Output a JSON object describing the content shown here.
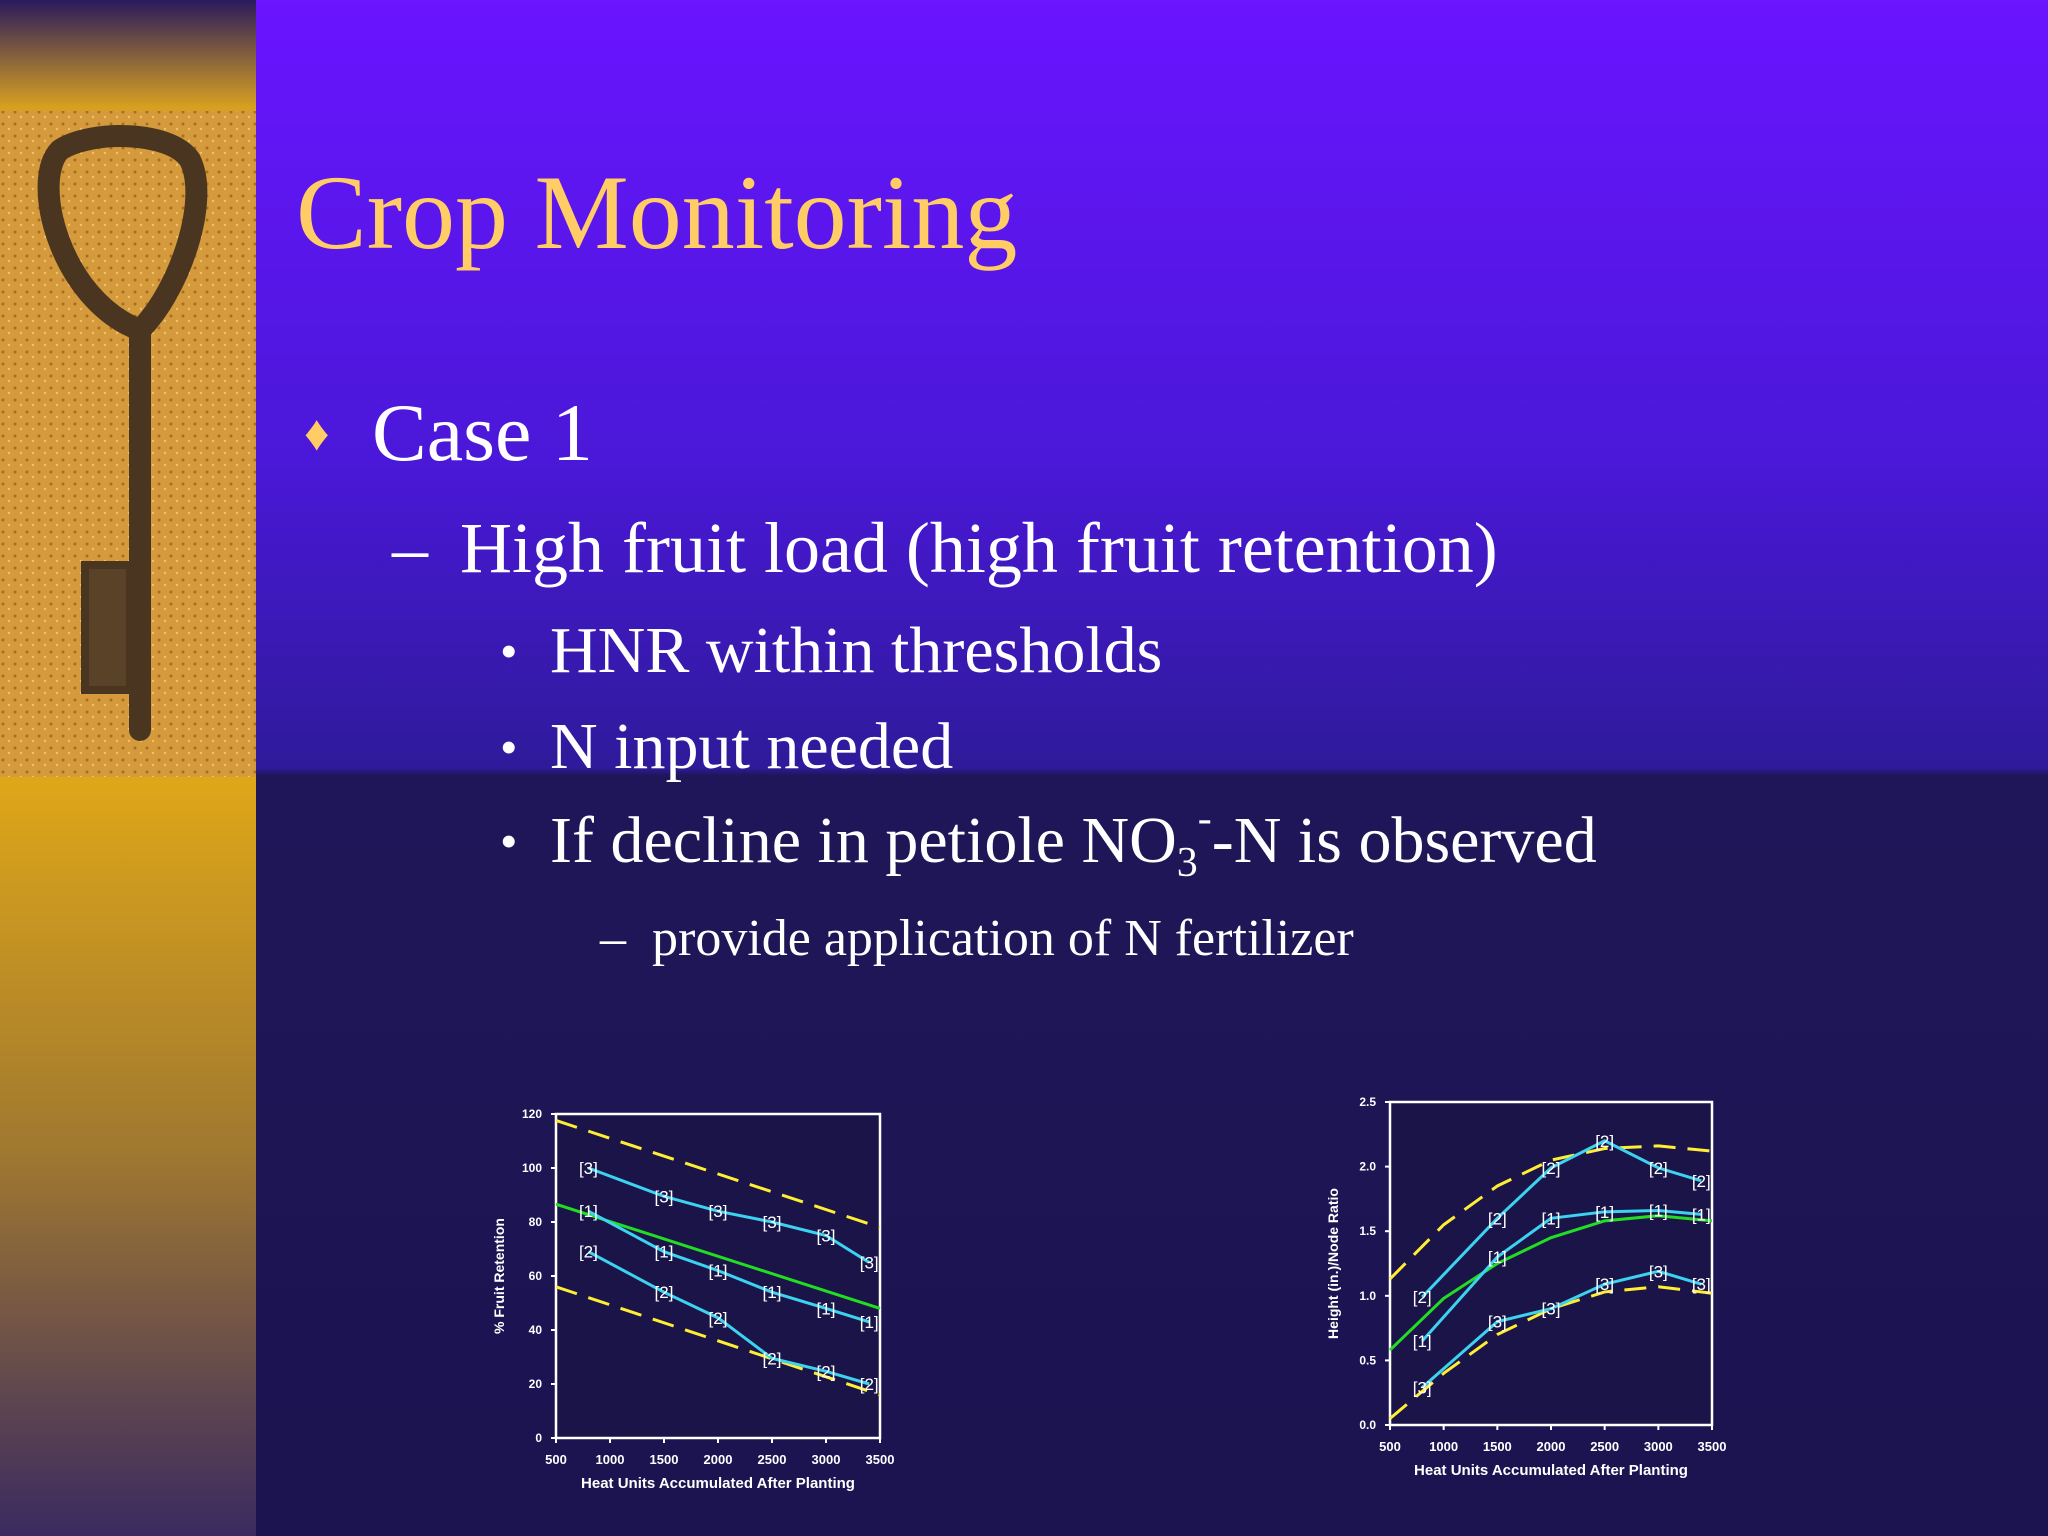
{
  "slide": {
    "title": "Crop Monitoring",
    "level1": "Case 1",
    "level2": "High fruit load (high fruit retention)",
    "level3": [
      "HNR within thresholds",
      "N input needed"
    ],
    "level3_chem": {
      "text": "If decline in petiole NO",
      "sub": "3",
      "sup": "-",
      "rest": "-N is observed"
    },
    "level4": "provide application of N fertilizer"
  },
  "chart_data": [
    {
      "type": "line",
      "xlabel": "Heat Units Accumulated After Planting",
      "ylabel": "% Fruit Retention",
      "xlim": [
        500,
        3500
      ],
      "xticks": [
        500,
        1000,
        1500,
        2000,
        2500,
        3000,
        3500
      ],
      "ylim": [
        0,
        120
      ],
      "yticks": [
        0,
        20,
        40,
        60,
        80,
        100,
        120
      ],
      "series": [
        {
          "color": "#ffee33",
          "style": "dashed",
          "x": [
            500,
            3500
          ],
          "values": [
            117.6,
            78
          ]
        },
        {
          "color": "#ffee33",
          "style": "dashed",
          "x": [
            500,
            3500
          ],
          "values": [
            56,
            16
          ]
        },
        {
          "color": "#22dd22",
          "style": "solid",
          "x": [
            500,
            3500
          ],
          "values": [
            86.6,
            48
          ]
        },
        {
          "color": "#3cd2f0",
          "style": "solid",
          "marker_label": "[3]",
          "x": [
            800,
            1500,
            2000,
            2500,
            3000,
            3400
          ],
          "values": [
            100,
            89.5,
            84,
            80,
            75,
            65
          ]
        },
        {
          "color": "#3cd2f0",
          "style": "solid",
          "marker_label": "[1]",
          "x": [
            800,
            1500,
            2000,
            2500,
            3000,
            3400
          ],
          "values": [
            84,
            69,
            62,
            54,
            48,
            43
          ]
        },
        {
          "color": "#3cd2f0",
          "style": "solid",
          "marker_label": "[2]",
          "x": [
            800,
            1500,
            2000,
            2500,
            3000,
            3400
          ],
          "values": [
            69,
            54,
            44.5,
            29.5,
            24.7,
            20
          ]
        }
      ]
    },
    {
      "type": "line",
      "xlabel": "Heat Units Accumulated After Planting",
      "ylabel": "Height (in.)/Node Ratio",
      "xlim": [
        500,
        3500
      ],
      "xticks": [
        500,
        1000,
        1500,
        2000,
        2500,
        3000,
        3500
      ],
      "ylim": [
        0,
        2.5
      ],
      "yticks": [
        {
          "value": 0,
          "label": "0.0"
        },
        {
          "value": 0.5,
          "label": "0.5"
        },
        {
          "value": 1,
          "label": "1.0"
        },
        {
          "value": 1.5,
          "label": "1.5"
        },
        {
          "value": 2,
          "label": "2.0"
        },
        {
          "value": 2.5,
          "label": "2.5"
        }
      ],
      "series": [
        {
          "color": "#ffee33",
          "style": "dashed",
          "x": [
            500,
            1000,
            1500,
            2000,
            2500,
            3000,
            3500
          ],
          "values": [
            1.13,
            1.55,
            1.85,
            2.05,
            2.14,
            2.16,
            2.12
          ]
        },
        {
          "color": "#ffee33",
          "style": "dashed",
          "x": [
            500,
            1000,
            1500,
            2000,
            2500,
            3000,
            3500
          ],
          "values": [
            0.05,
            0.4,
            0.7,
            0.9,
            1.03,
            1.07,
            1.02
          ]
        },
        {
          "color": "#22dd22",
          "style": "solid",
          "x": [
            500,
            1000,
            1500,
            2000,
            2500,
            3000,
            3500
          ],
          "values": [
            0.58,
            0.98,
            1.25,
            1.45,
            1.58,
            1.62,
            1.58
          ]
        },
        {
          "color": "#3cd2f0",
          "style": "solid",
          "marker_label": "[2]",
          "x": [
            800,
            1500,
            2000,
            2500,
            3000,
            3400
          ],
          "values": [
            0.99,
            1.6,
            1.99,
            2.2,
            1.99,
            1.89
          ]
        },
        {
          "color": "#3cd2f0",
          "style": "solid",
          "marker_label": "[1]",
          "x": [
            800,
            1500,
            2000,
            2500,
            3000,
            3400
          ],
          "values": [
            0.65,
            1.3,
            1.6,
            1.65,
            1.66,
            1.63
          ]
        },
        {
          "color": "#3cd2f0",
          "style": "solid",
          "marker_label": "[3]",
          "x": [
            800,
            1500,
            2000,
            2500,
            3000,
            3400
          ],
          "values": [
            0.29,
            0.8,
            0.9,
            1.09,
            1.19,
            1.09
          ]
        }
      ]
    }
  ]
}
